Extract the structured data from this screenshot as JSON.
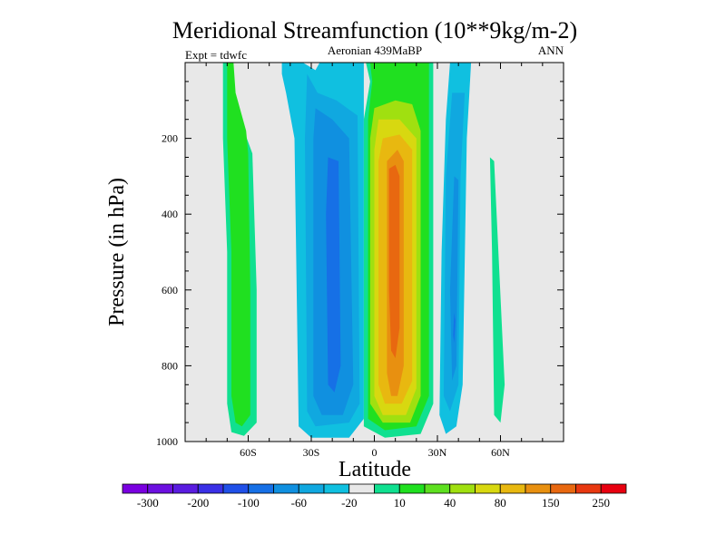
{
  "chart_data": {
    "type": "contour",
    "title": "Meridional Streamfunction (10**9kg/m-2)",
    "subtitle_left": "Expt = tdwfc",
    "subtitle_center": "Aeronian 439MaBP",
    "subtitle_right": "ANN",
    "xlabel": "Latitude",
    "ylabel": "Pressure (in hPa)",
    "xlim": [
      -90,
      90
    ],
    "ylim": [
      1000,
      0
    ],
    "x_ticks": [
      {
        "value": -60,
        "label": "60S"
      },
      {
        "value": -30,
        "label": "30S"
      },
      {
        "value": 0,
        "label": "0"
      },
      {
        "value": 30,
        "label": "30N"
      },
      {
        "value": 60,
        "label": "60N"
      }
    ],
    "y_ticks": [
      {
        "value": 200,
        "label": "200"
      },
      {
        "value": 400,
        "label": "400"
      },
      {
        "value": 600,
        "label": "600"
      },
      {
        "value": 800,
        "label": "800"
      },
      {
        "value": 1000,
        "label": "1000"
      }
    ],
    "background_color": "#e8e8e8",
    "colorbar": {
      "colors": [
        "#7a00e0",
        "#6c10e0",
        "#5a1ce0",
        "#3a30e6",
        "#2050e8",
        "#1670e6",
        "#1090e0",
        "#10a8e0",
        "#10c0e0",
        "#e8e8e8",
        "#10e090",
        "#20e020",
        "#5ee020",
        "#a0e010",
        "#d8d810",
        "#e8b810",
        "#e89010",
        "#e86810",
        "#e83810",
        "#e80010"
      ],
      "labels": [
        "-300",
        "-200",
        "-100",
        "-60",
        "-20",
        "10",
        "40",
        "80",
        "150",
        "250"
      ]
    },
    "regions": [
      {
        "level": 10,
        "color": "#10e090",
        "path": [
          [
            -72,
            0
          ],
          [
            -68,
            0
          ],
          [
            -67,
            80
          ],
          [
            -62,
            180
          ],
          [
            -58,
            240
          ],
          [
            -56,
            600
          ],
          [
            -56,
            950
          ],
          [
            -62,
            985
          ],
          [
            -68,
            975
          ],
          [
            -70,
            900
          ],
          [
            -70,
            500
          ],
          [
            -72,
            200
          ]
        ]
      },
      {
        "level": 40,
        "color": "#20e020",
        "path": [
          [
            -70,
            0
          ],
          [
            -67,
            0
          ],
          [
            -66,
            80
          ],
          [
            -61,
            180
          ],
          [
            -60,
            240
          ],
          [
            -59,
            600
          ],
          [
            -59,
            930
          ],
          [
            -63,
            960
          ],
          [
            -66,
            950
          ],
          [
            -68,
            880
          ],
          [
            -68,
            500
          ],
          [
            -70,
            200
          ]
        ]
      },
      {
        "level": 10,
        "color": "#10e090",
        "path": [
          [
            55,
            250
          ],
          [
            57,
            260
          ],
          [
            59,
            500
          ],
          [
            62,
            850
          ],
          [
            60,
            950
          ],
          [
            57,
            930
          ],
          [
            56,
            500
          ]
        ]
      },
      {
        "level": -20,
        "color": "#10c0e0",
        "path": [
          [
            -44,
            0
          ],
          [
            -34,
            0
          ],
          [
            -28,
            20
          ],
          [
            -26,
            0
          ],
          [
            -5,
            0
          ],
          [
            -5,
            940
          ],
          [
            -12,
            990
          ],
          [
            -30,
            990
          ],
          [
            -36,
            960
          ],
          [
            -38,
            200
          ],
          [
            -42,
            80
          ],
          [
            -44,
            30
          ]
        ]
      },
      {
        "level": -60,
        "color": "#10a8e0",
        "path": [
          [
            -32,
            30
          ],
          [
            -27,
            80
          ],
          [
            -18,
            100
          ],
          [
            -8,
            140
          ],
          [
            -7,
            900
          ],
          [
            -12,
            950
          ],
          [
            -28,
            960
          ],
          [
            -32,
            920
          ],
          [
            -33,
            200
          ]
        ]
      },
      {
        "level": -100,
        "color": "#1090e0",
        "path": [
          [
            -28,
            120
          ],
          [
            -20,
            150
          ],
          [
            -12,
            200
          ],
          [
            -10,
            850
          ],
          [
            -15,
            930
          ],
          [
            -25,
            930
          ],
          [
            -29,
            880
          ],
          [
            -29,
            200
          ]
        ]
      },
      {
        "level": -150,
        "color": "#1670e6",
        "path": [
          [
            -22,
            250
          ],
          [
            -17,
            260
          ],
          [
            -16,
            800
          ],
          [
            -19,
            870
          ],
          [
            -22,
            850
          ],
          [
            -23,
            400
          ]
        ]
      },
      {
        "level": -20,
        "color": "#10c0e0",
        "path": [
          [
            36,
            0
          ],
          [
            46,
            0
          ],
          [
            44,
            200
          ],
          [
            42,
            850
          ],
          [
            39,
            960
          ],
          [
            34,
            980
          ],
          [
            31,
            930
          ],
          [
            32,
            500
          ],
          [
            34,
            150
          ]
        ]
      },
      {
        "level": -60,
        "color": "#10a8e0",
        "path": [
          [
            37,
            80
          ],
          [
            43,
            80
          ],
          [
            41,
            300
          ],
          [
            40,
            850
          ],
          [
            36,
            920
          ],
          [
            33,
            880
          ],
          [
            34,
            300
          ]
        ]
      },
      {
        "level": -100,
        "color": "#1090e0",
        "path": [
          [
            38,
            300
          ],
          [
            40,
            310
          ],
          [
            39,
            800
          ],
          [
            37,
            840
          ],
          [
            36,
            600
          ]
        ]
      },
      {
        "level": -150,
        "color": "#1670e6",
        "path": [
          [
            38,
            660
          ],
          [
            38.5,
            680
          ],
          [
            38,
            740
          ],
          [
            37.5,
            720
          ]
        ]
      },
      {
        "level": 10,
        "color": "#10e090",
        "path": [
          [
            -4,
            0
          ],
          [
            28,
            0
          ],
          [
            28,
            900
          ],
          [
            22,
            980
          ],
          [
            5,
            990
          ],
          [
            -5,
            960
          ],
          [
            -5,
            150
          ],
          [
            -2,
            50
          ]
        ]
      },
      {
        "level": 40,
        "color": "#20e020",
        "path": [
          [
            -2,
            0
          ],
          [
            26,
            0
          ],
          [
            26,
            880
          ],
          [
            20,
            960
          ],
          [
            5,
            970
          ],
          [
            -3,
            940
          ],
          [
            -3,
            150
          ],
          [
            -1,
            50
          ]
        ]
      },
      {
        "level": 80,
        "color": "#a0e010",
        "path": [
          [
            0,
            120
          ],
          [
            10,
            100
          ],
          [
            18,
            110
          ],
          [
            22,
            180
          ],
          [
            22,
            880
          ],
          [
            17,
            950
          ],
          [
            4,
            950
          ],
          [
            -2,
            900
          ],
          [
            -2,
            200
          ]
        ]
      },
      {
        "level": 120,
        "color": "#d8d810",
        "path": [
          [
            2,
            150
          ],
          [
            12,
            150
          ],
          [
            20,
            200
          ],
          [
            20,
            860
          ],
          [
            15,
            930
          ],
          [
            4,
            930
          ],
          [
            0,
            880
          ],
          [
            0,
            230
          ]
        ]
      },
      {
        "level": 150,
        "color": "#e8b810",
        "path": [
          [
            4,
            200
          ],
          [
            12,
            190
          ],
          [
            18,
            230
          ],
          [
            18,
            840
          ],
          [
            13,
            900
          ],
          [
            5,
            900
          ],
          [
            2,
            850
          ],
          [
            2,
            260
          ]
        ]
      },
      {
        "level": 200,
        "color": "#e89010",
        "path": [
          [
            6,
            260
          ],
          [
            11,
            230
          ],
          [
            14,
            260
          ],
          [
            14,
            800
          ],
          [
            11,
            880
          ],
          [
            8,
            880
          ],
          [
            6,
            820
          ]
        ]
      },
      {
        "level": 250,
        "color": "#e86810",
        "path": [
          [
            7,
            280
          ],
          [
            10,
            270
          ],
          [
            12,
            300
          ],
          [
            12,
            700
          ],
          [
            10,
            780
          ],
          [
            8,
            760
          ],
          [
            7,
            600
          ]
        ]
      }
    ]
  }
}
